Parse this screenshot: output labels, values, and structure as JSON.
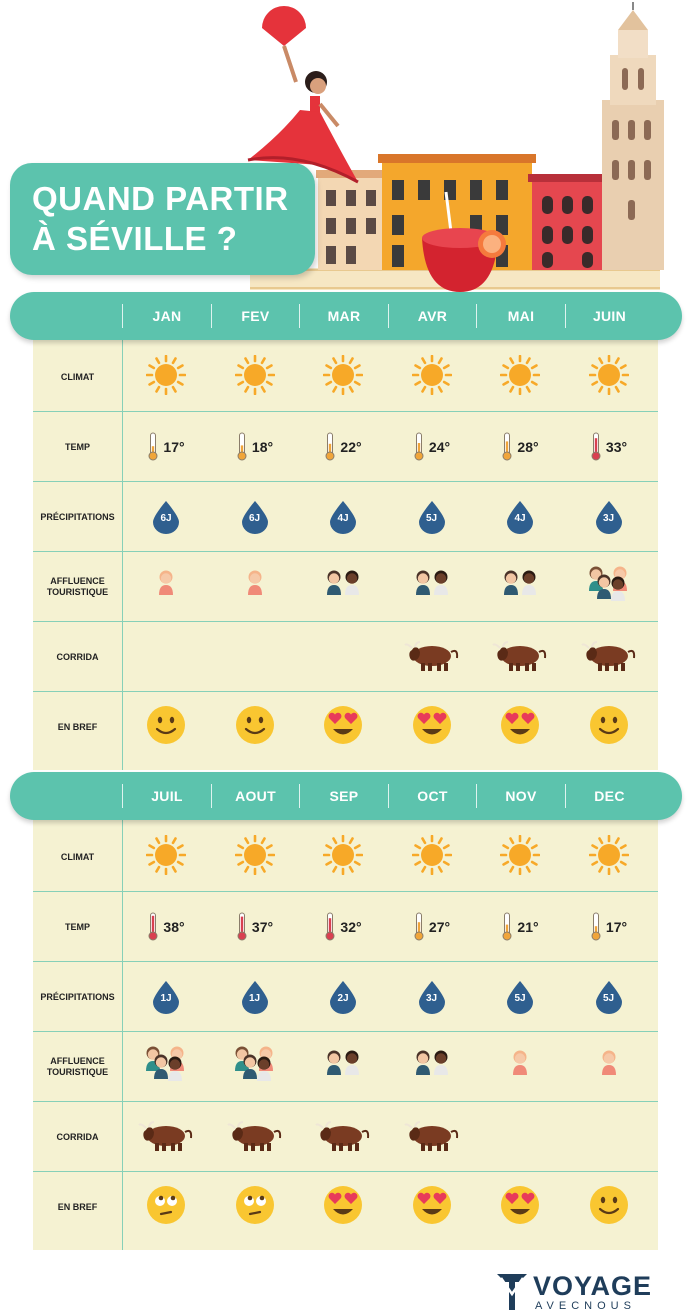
{
  "title": {
    "line1": "QUAND PARTIR",
    "line2": "À SÉVILLE ?"
  },
  "row_labels": {
    "climat": "CLIMAT",
    "temp": "TEMP",
    "precip": "PRÉCIPITATIONS",
    "affluence": [
      "AFFLUENCE",
      "TOURISTIQUE"
    ],
    "corrida": "CORRIDA",
    "bref": "EN BREF"
  },
  "sections": [
    {
      "months": [
        "JAN",
        "FEV",
        "MAR",
        "AVR",
        "MAI",
        "JUIN"
      ],
      "climat": [
        "sun-icon",
        "sun-icon",
        "sun-icon",
        "sun-icon",
        "sun-icon",
        "sun-icon"
      ],
      "temp": [
        "17°",
        "18°",
        "22°",
        "24°",
        "28°",
        "33°"
      ],
      "temp_level": [
        0.3,
        0.35,
        0.45,
        0.5,
        0.6,
        0.8
      ],
      "precip": [
        "6J",
        "6J",
        "4J",
        "5J",
        "4J",
        "3J"
      ],
      "affluence": [
        1,
        1,
        2,
        2,
        2,
        4
      ],
      "corrida": [
        false,
        false,
        false,
        true,
        true,
        true
      ],
      "bref": [
        "smile",
        "smile",
        "heart-eyes",
        "heart-eyes",
        "heart-eyes",
        "smile"
      ]
    },
    {
      "months": [
        "JUIL",
        "AOUT",
        "SEP",
        "OCT",
        "NOV",
        "DEC"
      ],
      "climat": [
        "sun-icon",
        "sun-icon",
        "sun-icon",
        "sun-icon",
        "sun-icon",
        "sun-icon"
      ],
      "temp": [
        "38°",
        "37°",
        "32°",
        "27°",
        "21°",
        "17°"
      ],
      "temp_level": [
        0.95,
        0.9,
        0.8,
        0.55,
        0.4,
        0.3
      ],
      "precip": [
        "1J",
        "1J",
        "2J",
        "3J",
        "5J",
        "5J"
      ],
      "affluence": [
        4,
        4,
        2,
        2,
        1,
        1
      ],
      "corrida": [
        true,
        true,
        true,
        true,
        false,
        false
      ],
      "bref": [
        "eye-roll",
        "eye-roll",
        "heart-eyes",
        "heart-eyes",
        "heart-eyes",
        "smile"
      ]
    }
  ],
  "logo": {
    "main": "VOYAGE",
    "sub": "AVECNOUS"
  },
  "colors": {
    "teal": "#5cc3ad",
    "cream": "#f5f2d2",
    "drop": "#2f5f8f",
    "sun": "#f7a928",
    "emoji": "#f9c631"
  }
}
